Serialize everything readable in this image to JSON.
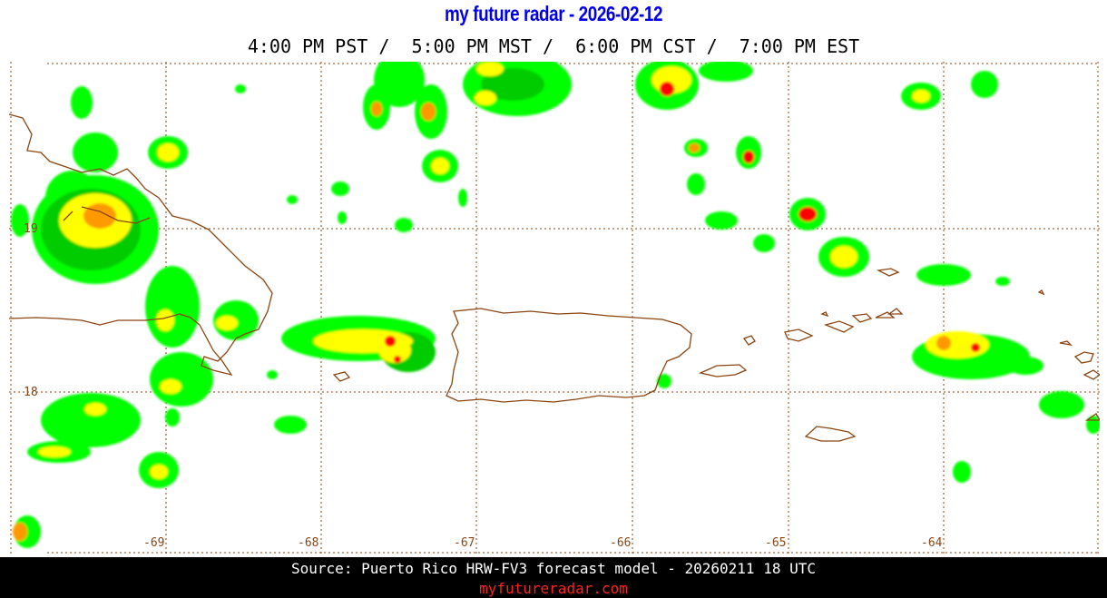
{
  "header": {
    "title": "my future radar - 2026-02-12",
    "times": "4:00 PM PST /  5:00 PM MST /  6:00 PM CST /  7:00 PM EST"
  },
  "map": {
    "region": "Puerto Rico",
    "lon_labels": [
      "-69",
      "-68",
      "-67",
      "-66",
      "-65",
      "-64"
    ],
    "lat_labels": [
      "19",
      "18"
    ],
    "colors": {
      "grid": "#8b4513",
      "coast": "#8b4513",
      "radar_light": "#00ff00",
      "radar_mid": "#00cc00",
      "radar_dark": "#009900",
      "radar_yellow": "#ffff00",
      "radar_orange": "#ff9900",
      "radar_red": "#ff0000"
    }
  },
  "footer": {
    "source": "Source: Puerto Rico HRW-FV3 forecast model - 20260211 18 UTC",
    "site": "myfutureradar.com"
  }
}
